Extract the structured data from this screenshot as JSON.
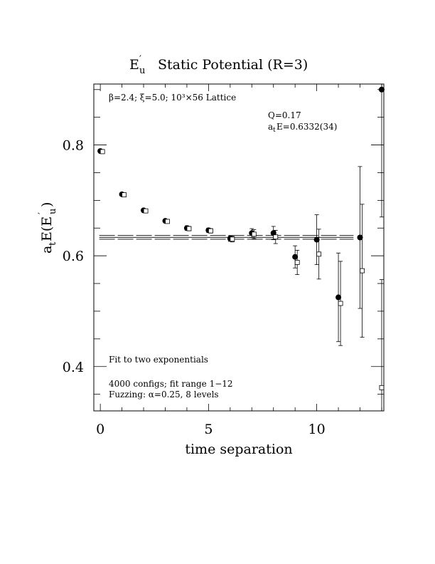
{
  "chart_data": {
    "type": "scatter",
    "title_main": "E",
    "title_prime": "′",
    "title_sub": "u",
    "title_rest": "Static Potential (R=3)",
    "xlabel": "time separation",
    "ylabel_a": "a",
    "ylabel_t": "t",
    "ylabel_E": "E(E",
    "ylabel_prime": "′",
    "ylabel_u": "u",
    "ylabel_close": ")",
    "xlim": [
      -0.3,
      13.1
    ],
    "ylim": [
      0.32,
      0.91
    ],
    "x_ticks": [
      0,
      5,
      10
    ],
    "x_tick_labels": [
      "0",
      "5",
      "10"
    ],
    "y_ticks": [
      0.4,
      0.6,
      0.8
    ],
    "y_tick_labels": [
      "0.4",
      "0.6",
      "0.8"
    ],
    "annotations": {
      "lattice": "β=2.4; ξ=5.0; 10³×56 Lattice",
      "q": "Q=0.17",
      "fit_label_a": "a",
      "fit_label_t": "t",
      "fit_label_rest": "E=0.6332(34)",
      "fit_type": "Fit to two exponentials",
      "configs": "4000 configs; fit range 1−12",
      "fuzzing": "Fuzzing: α=0.25, 8 levels"
    },
    "fit": {
      "value": 0.6332,
      "error": 0.0034,
      "x_range": [
        1,
        12
      ]
    },
    "series": [
      {
        "marker": "filled-circle",
        "points": [
          {
            "x": 0,
            "y": 0.789,
            "err": 0.002
          },
          {
            "x": 1,
            "y": 0.711,
            "err": 0.002
          },
          {
            "x": 2,
            "y": 0.682,
            "err": 0.003
          },
          {
            "x": 3,
            "y": 0.663,
            "err": 0.003
          },
          {
            "x": 4,
            "y": 0.65,
            "err": 0.004
          },
          {
            "x": 5,
            "y": 0.646,
            "err": 0.004
          },
          {
            "x": 6,
            "y": 0.631,
            "err": 0.005
          },
          {
            "x": 7,
            "y": 0.641,
            "err": 0.008
          },
          {
            "x": 8,
            "y": 0.641,
            "err": 0.012
          },
          {
            "x": 9,
            "y": 0.598,
            "err": 0.02
          },
          {
            "x": 10,
            "y": 0.629,
            "err": 0.045
          },
          {
            "x": 11,
            "y": 0.525,
            "err": 0.08
          },
          {
            "x": 12,
            "y": 0.633,
            "err": 0.128
          },
          {
            "x": 13,
            "y": 0.9,
            "err": 0.23
          }
        ]
      },
      {
        "marker": "open-square",
        "points": [
          {
            "x": 0.1,
            "y": 0.788,
            "err": 0.002
          },
          {
            "x": 1.1,
            "y": 0.71,
            "err": 0.002
          },
          {
            "x": 2.1,
            "y": 0.681,
            "err": 0.003
          },
          {
            "x": 3.1,
            "y": 0.662,
            "err": 0.003
          },
          {
            "x": 4.1,
            "y": 0.649,
            "err": 0.004
          },
          {
            "x": 5.1,
            "y": 0.645,
            "err": 0.004
          },
          {
            "x": 6.1,
            "y": 0.63,
            "err": 0.005
          },
          {
            "x": 7.1,
            "y": 0.639,
            "err": 0.008
          },
          {
            "x": 8.1,
            "y": 0.634,
            "err": 0.012
          },
          {
            "x": 9.1,
            "y": 0.588,
            "err": 0.022
          },
          {
            "x": 10.1,
            "y": 0.603,
            "err": 0.045
          },
          {
            "x": 11.1,
            "y": 0.514,
            "err": 0.076
          },
          {
            "x": 12.1,
            "y": 0.573,
            "err": 0.12
          },
          {
            "x": 13.0,
            "y": 0.362,
            "err": 0.195
          }
        ]
      }
    ]
  }
}
